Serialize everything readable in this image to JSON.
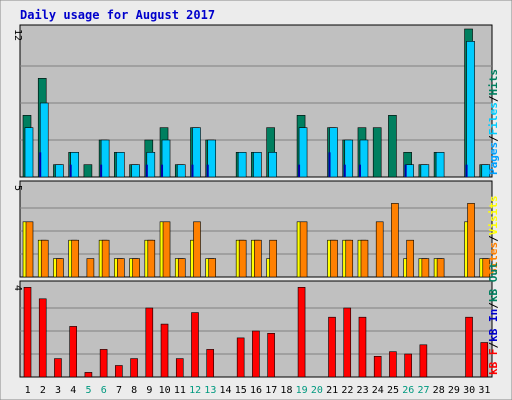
{
  "title": "Daily usage for August 2017",
  "colors": {
    "frame_bg": "#ececec",
    "plot_bg": "#c0c0c0",
    "title": "#0000cc",
    "hits": "#007f5f",
    "files": "#00ccff",
    "pages": "#00a0ff",
    "visits": "#ffff00",
    "sites": "#ff8000",
    "kb_f": "#ff0000",
    "kb_in": "#0000cc",
    "kb_out": "#007f5f",
    "weekend": "#00997f",
    "weekday": "#000000"
  },
  "chart_data": [
    {
      "type": "bar",
      "title": "Daily usage for August 2017",
      "categories": [
        "1",
        "2",
        "3",
        "4",
        "5",
        "6",
        "7",
        "8",
        "9",
        "10",
        "11",
        "12",
        "13",
        "14",
        "15",
        "16",
        "17",
        "18",
        "19",
        "20",
        "21",
        "22",
        "23",
        "24",
        "25",
        "26",
        "27",
        "28",
        "29",
        "30",
        "31"
      ],
      "weekend_days": [
        5,
        6,
        12,
        13,
        19,
        20,
        26,
        27
      ],
      "ylim": [
        0,
        12
      ],
      "ymax_label": "12",
      "series": [
        {
          "name": "Hits",
          "values": [
            5,
            8,
            1,
            2,
            1,
            3,
            2,
            1,
            3,
            4,
            1,
            4,
            3,
            0,
            2,
            2,
            4,
            0,
            5,
            0,
            4,
            3,
            4,
            4,
            5,
            2,
            1,
            2,
            0,
            12,
            1
          ]
        },
        {
          "name": "Files",
          "values": [
            4,
            6,
            1,
            2,
            0,
            3,
            2,
            1,
            2,
            3,
            1,
            4,
            3,
            0,
            2,
            2,
            2,
            0,
            4,
            0,
            4,
            3,
            3,
            0,
            0,
            1,
            1,
            2,
            0,
            11,
            1
          ]
        },
        {
          "name": "Pages",
          "values": [
            0,
            2,
            0,
            1,
            0,
            1,
            0,
            0,
            1,
            1,
            0,
            1,
            1,
            0,
            0,
            0,
            0,
            0,
            1,
            0,
            2,
            1,
            1,
            0,
            0,
            1,
            0,
            0,
            0,
            1,
            0
          ]
        }
      ],
      "legend": [
        "Pages",
        "Files",
        "Hits"
      ],
      "legend_separator": "/"
    },
    {
      "type": "bar",
      "categories": [
        "1",
        "2",
        "3",
        "4",
        "5",
        "6",
        "7",
        "8",
        "9",
        "10",
        "11",
        "12",
        "13",
        "14",
        "15",
        "16",
        "17",
        "18",
        "19",
        "20",
        "21",
        "22",
        "23",
        "24",
        "25",
        "26",
        "27",
        "28",
        "29",
        "30",
        "31"
      ],
      "ylim": [
        0,
        5
      ],
      "ymax_label": "5",
      "series": [
        {
          "name": "Visits",
          "values": [
            3,
            2,
            1,
            2,
            0,
            2,
            1,
            1,
            2,
            3,
            1,
            2,
            1,
            0,
            2,
            2,
            1,
            0,
            3,
            0,
            2,
            2,
            2,
            0,
            0,
            1,
            1,
            1,
            0,
            3,
            1
          ]
        },
        {
          "name": "Sites",
          "values": [
            3,
            2,
            1,
            2,
            1,
            2,
            1,
            1,
            2,
            3,
            1,
            3,
            1,
            0,
            2,
            2,
            2,
            0,
            3,
            0,
            2,
            2,
            2,
            3,
            4,
            2,
            1,
            1,
            0,
            4,
            1
          ]
        }
      ],
      "legend": [
        "Sites",
        "Visits"
      ],
      "legend_separator": "/"
    },
    {
      "type": "bar",
      "categories": [
        "1",
        "2",
        "3",
        "4",
        "5",
        "6",
        "7",
        "8",
        "9",
        "10",
        "11",
        "12",
        "13",
        "14",
        "15",
        "16",
        "17",
        "18",
        "19",
        "20",
        "21",
        "22",
        "23",
        "24",
        "25",
        "26",
        "27",
        "28",
        "29",
        "30",
        "31"
      ],
      "ylim": [
        0,
        4
      ],
      "ymax_label": "4",
      "series": [
        {
          "name": "kB F",
          "values": [
            3.9,
            3.4,
            0.8,
            2.2,
            0.2,
            1.2,
            0.5,
            0.8,
            3.0,
            2.3,
            0.8,
            2.8,
            1.2,
            0,
            1.7,
            2.0,
            1.9,
            0,
            3.9,
            0,
            2.6,
            3.0,
            2.6,
            0.9,
            1.1,
            1.0,
            1.4,
            0,
            0,
            2.6,
            1.5
          ]
        }
      ],
      "legend": [
        "kB F",
        "kB In",
        "kB Out"
      ],
      "legend_separator": "/"
    }
  ]
}
